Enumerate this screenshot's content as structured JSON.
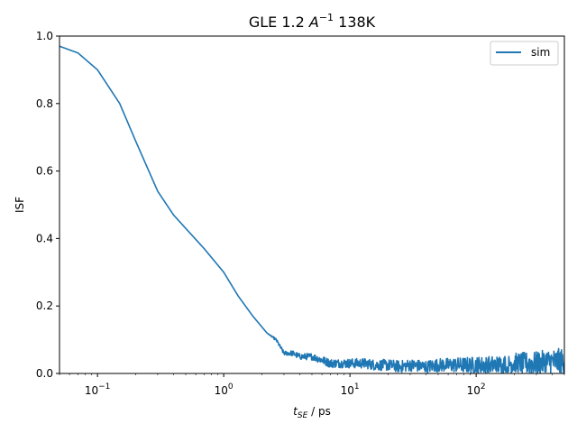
{
  "chart_data": {
    "type": "line",
    "title": "GLE 1.2 A^-1 138K",
    "title_parts": {
      "prefix": "GLE 1.2 ",
      "symbol": "A",
      "exponent": "−1",
      "suffix": " 138K"
    },
    "xlabel": "t_SE / ps",
    "xlabel_parts": {
      "var": "t",
      "sub": "SE",
      "rest": " / ps"
    },
    "ylabel": "ISF",
    "xscale": "log",
    "xlim": [
      0.05,
      500
    ],
    "ylim": [
      0.0,
      1.0
    ],
    "x_ticks": [
      {
        "value": 0.1,
        "base": "10",
        "exp": "−1"
      },
      {
        "value": 1,
        "base": "10",
        "exp": "0"
      },
      {
        "value": 10,
        "base": "10",
        "exp": "1"
      },
      {
        "value": 100,
        "base": "10",
        "exp": "2"
      }
    ],
    "y_ticks": [
      {
        "value": 0.0,
        "label": "0.0"
      },
      {
        "value": 0.2,
        "label": "0.2"
      },
      {
        "value": 0.4,
        "label": "0.4"
      },
      {
        "value": 0.6,
        "label": "0.6"
      },
      {
        "value": 0.8,
        "label": "0.8"
      },
      {
        "value": 1.0,
        "label": "1.0"
      }
    ],
    "legend": {
      "position": "upper right",
      "entries": [
        "sim"
      ]
    },
    "series": [
      {
        "name": "sim",
        "color": "#1f77b4",
        "x": [
          0.05,
          0.07,
          0.1,
          0.15,
          0.2,
          0.3,
          0.4,
          0.5,
          0.7,
          1.0,
          1.3,
          1.7,
          2.2,
          2.6,
          3.0,
          3.5,
          4.0,
          5.0,
          6.0,
          7.0,
          8.0,
          10,
          13,
          16,
          20,
          25,
          30,
          40,
          50,
          70,
          100,
          150,
          200,
          300,
          400,
          500
        ],
        "values": [
          0.97,
          0.95,
          0.9,
          0.8,
          0.69,
          0.54,
          0.47,
          0.43,
          0.37,
          0.3,
          0.23,
          0.17,
          0.12,
          0.1,
          0.06,
          0.06,
          0.05,
          0.05,
          0.04,
          0.03,
          0.03,
          0.03,
          0.03,
          0.025,
          0.025,
          0.02,
          0.025,
          0.02,
          0.025,
          0.025,
          0.025,
          0.025,
          0.03,
          0.03,
          0.035,
          0.035
        ],
        "noise_amplitude": [
          0.0,
          0.0,
          0.0,
          0.0,
          0.0,
          0.0,
          0.0,
          0.0,
          0.0,
          0.0,
          0.0,
          0.0,
          0.0,
          0.004,
          0.006,
          0.008,
          0.009,
          0.01,
          0.012,
          0.013,
          0.013,
          0.014,
          0.015,
          0.016,
          0.017,
          0.018,
          0.018,
          0.019,
          0.02,
          0.022,
          0.025,
          0.028,
          0.031,
          0.035,
          0.038,
          0.04
        ]
      }
    ]
  }
}
